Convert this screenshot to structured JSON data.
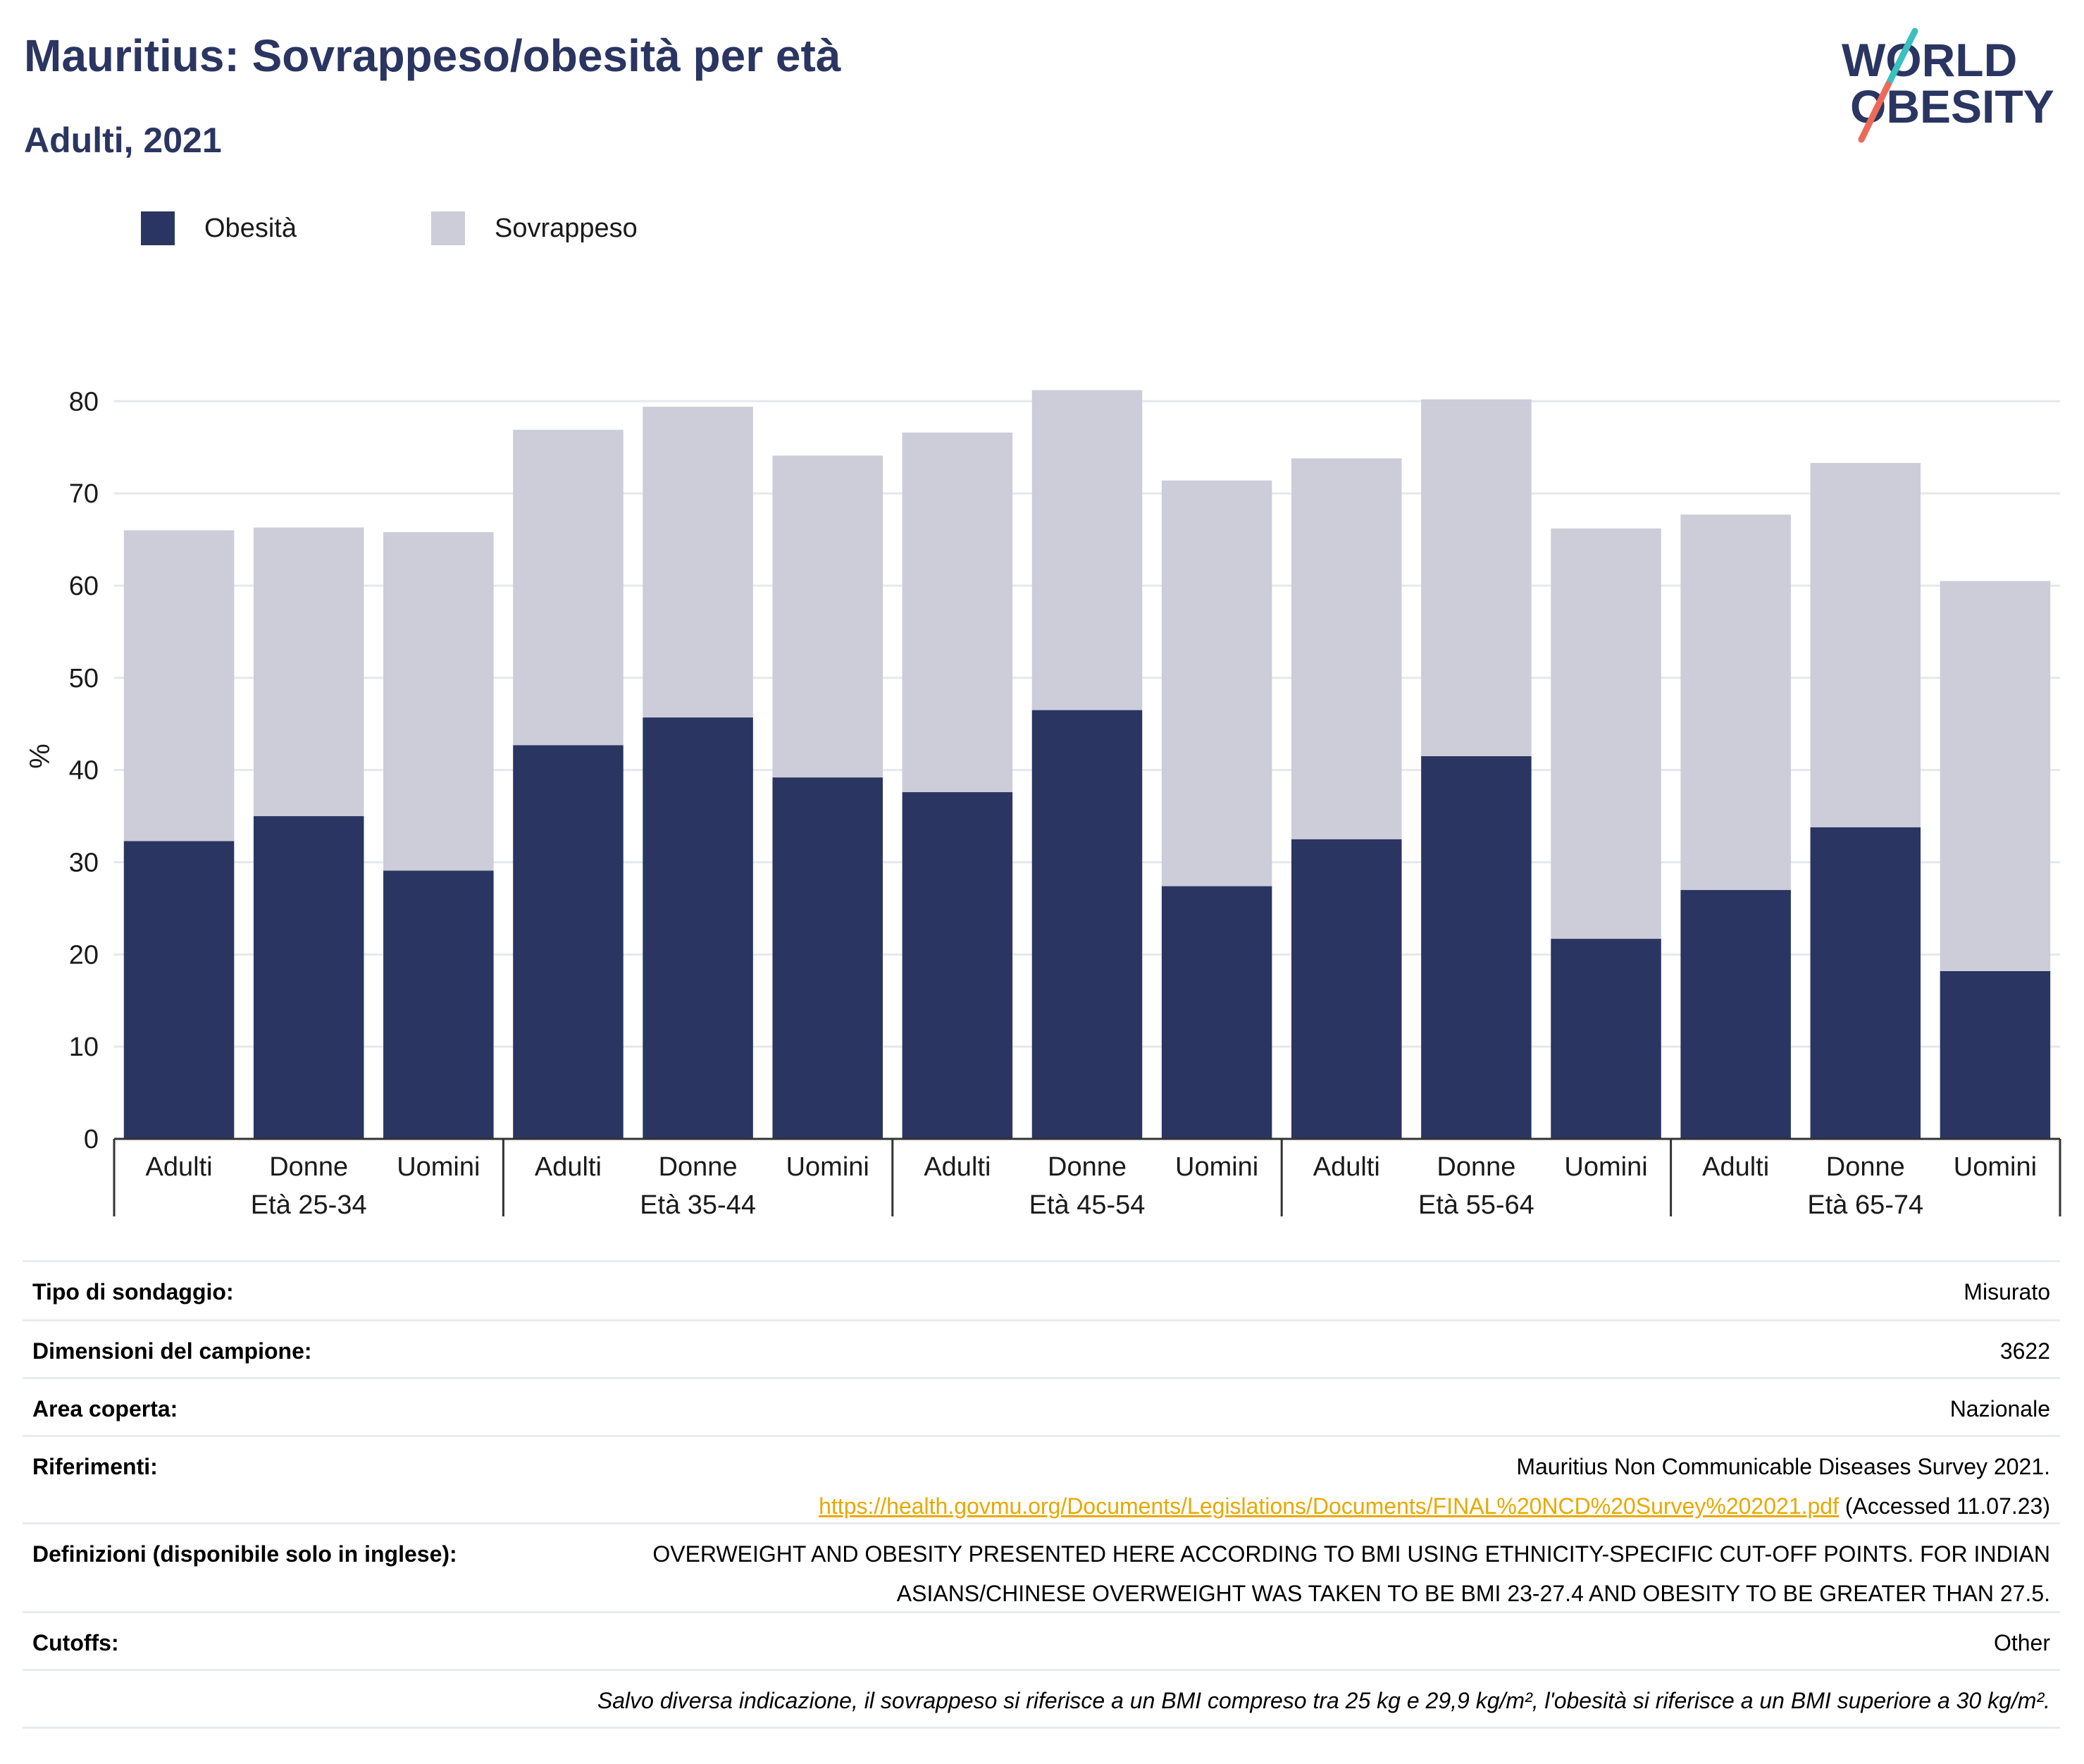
{
  "title": "Mauritius: Sovrappeso/obesità per età",
  "subtitle": "Adulti, 2021",
  "logo": {
    "line1": "WORLD",
    "line2": "OBESITY"
  },
  "colors": {
    "obesity": "#2a3561",
    "overweight": "#cccdd9",
    "brand": "#2a3561",
    "link": "#e8a800",
    "logo_teal": "#3bbfbf",
    "logo_coral": "#ec6a5a"
  },
  "legend": [
    {
      "label": "Obesità",
      "color": "#2a3561"
    },
    {
      "label": "Sovrappeso",
      "color": "#cccdd9"
    }
  ],
  "chart_data": {
    "type": "bar",
    "stacked": true,
    "ylabel": "%",
    "ylim": [
      0,
      83
    ],
    "yticks": [
      0,
      10,
      20,
      30,
      40,
      50,
      60,
      70,
      80
    ],
    "grid": true,
    "legend_position": "top-left",
    "groups": [
      "Età 25-34",
      "Età 35-44",
      "Età 45-54",
      "Età 55-64",
      "Età 65-74"
    ],
    "categories": [
      "Adulti",
      "Donne",
      "Uomini",
      "Adulti",
      "Donne",
      "Uomini",
      "Adulti",
      "Donne",
      "Uomini",
      "Adulti",
      "Donne",
      "Uomini",
      "Adulti",
      "Donne",
      "Uomini"
    ],
    "series": [
      {
        "name": "Obesità",
        "values": [
          32.3,
          35.0,
          29.1,
          42.7,
          45.7,
          39.2,
          37.6,
          46.5,
          27.4,
          32.5,
          41.5,
          21.7,
          27.0,
          33.8,
          18.2
        ]
      },
      {
        "name": "Sovrappeso",
        "values": [
          33.7,
          31.3,
          36.7,
          34.2,
          33.7,
          34.9,
          39.0,
          34.7,
          44.0,
          41.3,
          38.7,
          44.5,
          40.7,
          39.5,
          42.3
        ]
      }
    ]
  },
  "info": {
    "survey_type": {
      "label": "Tipo di sondaggio:",
      "value": "Misurato"
    },
    "sample_size": {
      "label": "Dimensioni del campione:",
      "value": "3622"
    },
    "area": {
      "label": "Area coperta:",
      "value": "Nazionale"
    },
    "references": {
      "label": "Riferimenti:",
      "line1": "Mauritius Non Communicable Diseases Survey 2021.",
      "link": "https://health.govmu.org/Documents/Legislations/Documents/FINAL%20NCD%20Survey%202021.pdf",
      "accessed": "(Accessed 11.07.23)"
    },
    "definitions": {
      "label": "Definizioni (disponibile solo in inglese):",
      "line1": "OVERWEIGHT AND OBESITY PRESENTED HERE ACCORDING TO BMI USING ETHNICITY-SPECIFIC CUT-OFF POINTS. FOR INDIAN",
      "line2": "ASIANS/CHINESE OVERWEIGHT WAS TAKEN TO BE BMI 23-27.4 AND OBESITY TO BE GREATER THAN 27.5."
    },
    "cutoffs": {
      "label": "Cutoffs:",
      "value": "Other"
    },
    "note": "Salvo diversa indicazione, il sovrappeso si riferisce a un BMI compreso tra 25 kg e 29,9 kg/m², l'obesità si riferisce a un BMI superiore a 30 kg/m²."
  }
}
